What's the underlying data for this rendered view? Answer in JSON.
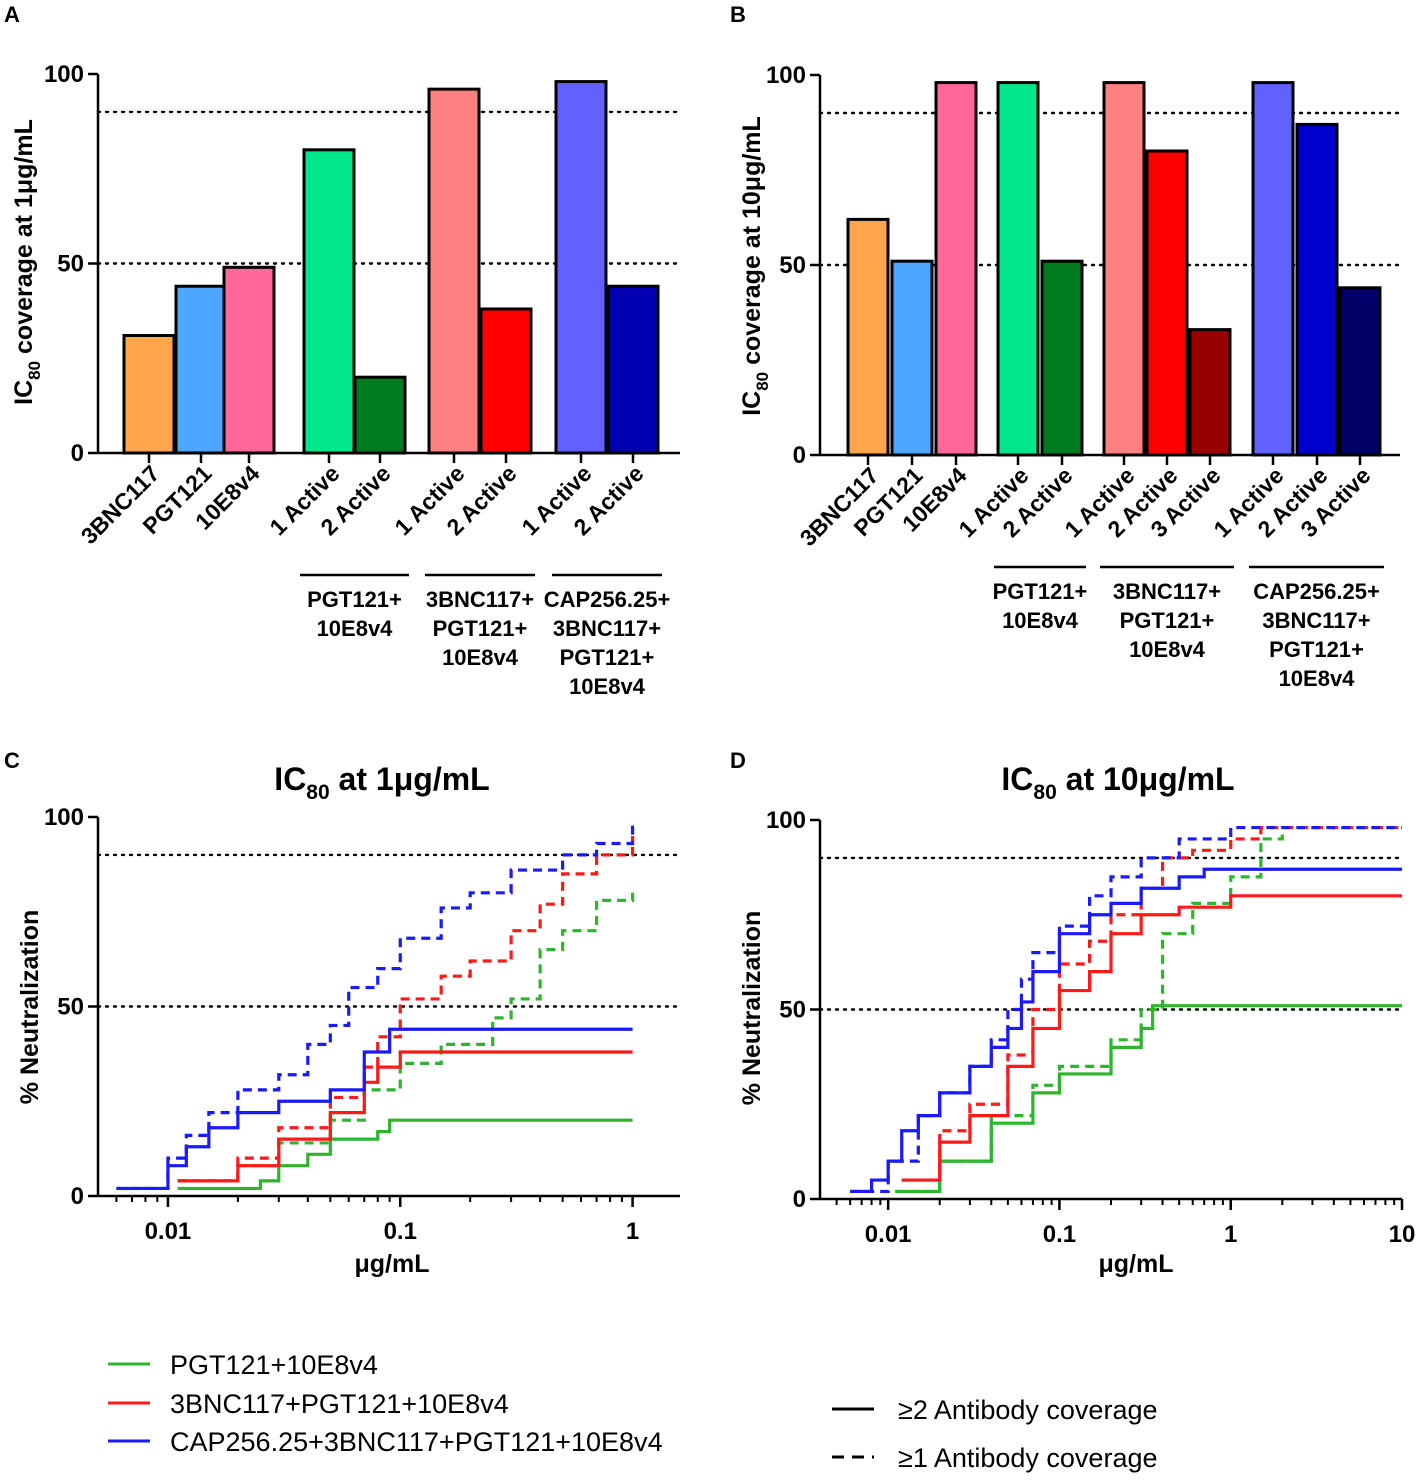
{
  "figure": {
    "legend_combos": [
      {
        "name": "PGT121+10E8v4",
        "color": "#2db52d"
      },
      {
        "name": "3BNC117+PGT121+10E8v4",
        "color": "#ff1a1a"
      },
      {
        "name": "CAP256.25+3BNC117+PGT121+10E8v4",
        "color": "#1a1aff"
      }
    ],
    "legend_styles": [
      {
        "label": "≥2 Antibody coverage",
        "style": "solid"
      },
      {
        "label": "≥1 Antibody coverage",
        "style": "dashed"
      }
    ]
  },
  "chart_data": [
    {
      "panel": "A",
      "type": "bar",
      "title": "",
      "ylabel_main": "IC",
      "ylabel_sub": "80",
      "ylabel_rest": " coverage at 1μg/mL",
      "ylim": [
        0,
        100
      ],
      "yticks": [
        0,
        50,
        100
      ],
      "reference_lines": [
        50,
        90
      ],
      "categories": [
        "3BNC117",
        "PGT121",
        "10E8v4",
        "1 Active",
        "2 Active",
        "1 Active",
        "2 Active",
        "1 Active",
        "2 Active"
      ],
      "values": [
        31,
        44,
        49,
        80,
        20,
        96,
        38,
        98,
        44
      ],
      "colors": [
        "#ffa64d",
        "#4da6ff",
        "#ff6699",
        "#00e68a",
        "#007a1f",
        "#ff8080",
        "#ff0000",
        "#6161ff",
        "#0000b3"
      ],
      "groups": [
        {
          "lines": [
            "PGT121+",
            "10E8v4"
          ],
          "from": 3,
          "to": 4
        },
        {
          "lines": [
            "3BNC117+",
            "PGT121+",
            "10E8v4"
          ],
          "from": 5,
          "to": 6
        },
        {
          "lines": [
            "CAP256.25+",
            "3BNC117+",
            "PGT121+",
            "10E8v4"
          ],
          "from": 7,
          "to": 8
        }
      ]
    },
    {
      "panel": "B",
      "type": "bar",
      "title": "",
      "ylabel_main": "IC",
      "ylabel_sub": "80",
      "ylabel_rest": " coverage at 10μg/mL",
      "ylim": [
        0,
        100
      ],
      "yticks": [
        0,
        50,
        100
      ],
      "reference_lines": [
        50,
        90
      ],
      "categories": [
        "3BNC117",
        "PGT121",
        "10E8v4",
        "1 Active",
        "2 Active",
        "1 Active",
        "2 Active",
        "3 Active",
        "1 Active",
        "2 Active",
        "3 Active"
      ],
      "values": [
        62,
        51,
        98,
        98,
        51,
        98,
        80,
        33,
        98,
        87,
        44
      ],
      "colors": [
        "#ffa64d",
        "#4da6ff",
        "#ff6699",
        "#00e68a",
        "#007a1f",
        "#ff8080",
        "#ff0000",
        "#990000",
        "#6161ff",
        "#0000cc",
        "#000066"
      ],
      "groups": [
        {
          "lines": [
            "PGT121+",
            "10E8v4"
          ],
          "from": 3,
          "to": 4
        },
        {
          "lines": [
            "3BNC117+",
            "PGT121+",
            "10E8v4"
          ],
          "from": 5,
          "to": 7
        },
        {
          "lines": [
            "CAP256.25+",
            "3BNC117+",
            "PGT121+",
            "10E8v4"
          ],
          "from": 8,
          "to": 10
        }
      ]
    },
    {
      "panel": "C",
      "type": "line",
      "title_main": "IC",
      "title_sub": "80",
      "title_rest": " at 1μg/mL",
      "xlabel": "μg/mL",
      "ylabel": "% Neutralization",
      "xscale": "log",
      "xlim": [
        0.005,
        1.6
      ],
      "xticks": [
        0.01,
        0.1,
        1
      ],
      "xtick_labels": [
        "0.01",
        "0.1",
        "1"
      ],
      "ylim": [
        0,
        100
      ],
      "yticks": [
        0,
        50,
        100
      ],
      "reference_lines": [
        50,
        90
      ],
      "series": [
        {
          "name": "PGT121+10E8v4",
          "coverage": "≥2",
          "color": "#2db52d",
          "dashed": false,
          "x": [
            0.011,
            0.025,
            0.03,
            0.04,
            0.05,
            0.08,
            0.09,
            1.0
          ],
          "y": [
            2,
            4,
            8,
            11,
            15,
            17,
            20,
            20
          ]
        },
        {
          "name": "PGT121+10E8v4",
          "coverage": "≥1",
          "color": "#2db52d",
          "dashed": true,
          "x": [
            0.011,
            0.02,
            0.03,
            0.05,
            0.07,
            0.1,
            0.15,
            0.25,
            0.3,
            0.4,
            0.5,
            0.7,
            1.0
          ],
          "y": [
            4,
            8,
            14,
            20,
            28,
            35,
            40,
            47,
            52,
            65,
            70,
            78,
            80
          ]
        },
        {
          "name": "3BNC117+PGT121+10E8v4",
          "coverage": "≥2",
          "color": "#ff1a1a",
          "dashed": false,
          "x": [
            0.011,
            0.02,
            0.03,
            0.05,
            0.07,
            0.08,
            0.1,
            1.0
          ],
          "y": [
            4,
            8,
            15,
            22,
            30,
            34,
            38,
            38
          ]
        },
        {
          "name": "3BNC117+PGT121+10E8v4",
          "coverage": "≥1",
          "color": "#ff1a1a",
          "dashed": true,
          "x": [
            0.011,
            0.02,
            0.03,
            0.05,
            0.07,
            0.08,
            0.1,
            0.15,
            0.2,
            0.3,
            0.4,
            0.5,
            0.7,
            1.0
          ],
          "y": [
            4,
            10,
            18,
            26,
            34,
            42,
            52,
            58,
            62,
            70,
            77,
            85,
            90,
            95
          ]
        },
        {
          "name": "CAP256.25+3BNC117+PGT121+10E8v4",
          "coverage": "≥2",
          "color": "#1a1aff",
          "dashed": false,
          "x": [
            0.006,
            0.01,
            0.012,
            0.015,
            0.02,
            0.03,
            0.05,
            0.07,
            0.09,
            1.0
          ],
          "y": [
            2,
            8,
            13,
            18,
            22,
            25,
            28,
            38,
            44,
            44
          ]
        },
        {
          "name": "CAP256.25+3BNC117+PGT121+10E8v4",
          "coverage": "≥1",
          "color": "#1a1aff",
          "dashed": true,
          "x": [
            0.006,
            0.01,
            0.012,
            0.015,
            0.02,
            0.03,
            0.04,
            0.05,
            0.06,
            0.08,
            0.1,
            0.15,
            0.2,
            0.3,
            0.5,
            0.7,
            1.0
          ],
          "y": [
            2,
            10,
            16,
            22,
            28,
            32,
            40,
            45,
            55,
            60,
            68,
            76,
            80,
            86,
            90,
            93,
            98
          ]
        }
      ]
    },
    {
      "panel": "D",
      "type": "line",
      "title_main": "IC",
      "title_sub": "80",
      "title_rest": " at 10μg/mL",
      "xlabel": "μg/mL",
      "ylabel": "% Neutralization",
      "xscale": "log",
      "xlim": [
        0.004,
        10
      ],
      "xticks": [
        0.01,
        0.1,
        1,
        10
      ],
      "xtick_labels": [
        "0.01",
        "0.1",
        "1",
        "10"
      ],
      "ylim": [
        0,
        100
      ],
      "yticks": [
        0,
        50,
        100
      ],
      "reference_lines": [
        50,
        90
      ],
      "series": [
        {
          "name": "PGT121+10E8v4",
          "coverage": "≥2",
          "color": "#2db52d",
          "dashed": false,
          "x": [
            0.011,
            0.02,
            0.04,
            0.07,
            0.1,
            0.2,
            0.3,
            0.35,
            10
          ],
          "y": [
            2,
            10,
            20,
            28,
            33,
            40,
            45,
            51,
            51
          ]
        },
        {
          "name": "PGT121+10E8v4",
          "coverage": "≥1",
          "color": "#2db52d",
          "dashed": true,
          "x": [
            0.011,
            0.02,
            0.04,
            0.07,
            0.1,
            0.2,
            0.3,
            0.4,
            0.6,
            1.0,
            1.5,
            2.0,
            10
          ],
          "y": [
            2,
            10,
            22,
            30,
            35,
            42,
            50,
            70,
            78,
            85,
            95,
            98,
            98
          ]
        },
        {
          "name": "3BNC117+PGT121+10E8v4",
          "coverage": "≥2",
          "color": "#ff1a1a",
          "dashed": false,
          "x": [
            0.012,
            0.02,
            0.03,
            0.05,
            0.07,
            0.1,
            0.15,
            0.2,
            0.3,
            0.5,
            1.0,
            10
          ],
          "y": [
            5,
            15,
            22,
            35,
            45,
            55,
            60,
            70,
            75,
            77,
            80,
            80
          ]
        },
        {
          "name": "3BNC117+PGT121+10E8v4",
          "coverage": "≥1",
          "color": "#ff1a1a",
          "dashed": true,
          "x": [
            0.012,
            0.02,
            0.03,
            0.05,
            0.07,
            0.1,
            0.15,
            0.2,
            0.3,
            0.4,
            0.6,
            1.0,
            1.5,
            10
          ],
          "y": [
            5,
            18,
            25,
            38,
            50,
            62,
            68,
            75,
            82,
            90,
            92,
            95,
            98,
            98
          ]
        },
        {
          "name": "CAP256.25+3BNC117+PGT121+10E8v4",
          "coverage": "≥2",
          "color": "#1a1aff",
          "dashed": false,
          "x": [
            0.006,
            0.008,
            0.01,
            0.012,
            0.015,
            0.02,
            0.03,
            0.04,
            0.05,
            0.06,
            0.07,
            0.1,
            0.15,
            0.2,
            0.3,
            0.5,
            0.7,
            10
          ],
          "y": [
            2,
            5,
            10,
            18,
            22,
            28,
            35,
            40,
            45,
            52,
            60,
            70,
            75,
            78,
            82,
            85,
            87,
            87
          ]
        },
        {
          "name": "CAP256.25+3BNC117+PGT121+10E8v4",
          "coverage": "≥1",
          "color": "#1a1aff",
          "dashed": true,
          "x": [
            0.006,
            0.01,
            0.015,
            0.02,
            0.03,
            0.04,
            0.05,
            0.06,
            0.07,
            0.1,
            0.15,
            0.2,
            0.3,
            0.5,
            1.0,
            10
          ],
          "y": [
            2,
            10,
            22,
            28,
            35,
            42,
            50,
            58,
            65,
            72,
            80,
            85,
            90,
            95,
            98,
            98
          ]
        }
      ]
    }
  ]
}
